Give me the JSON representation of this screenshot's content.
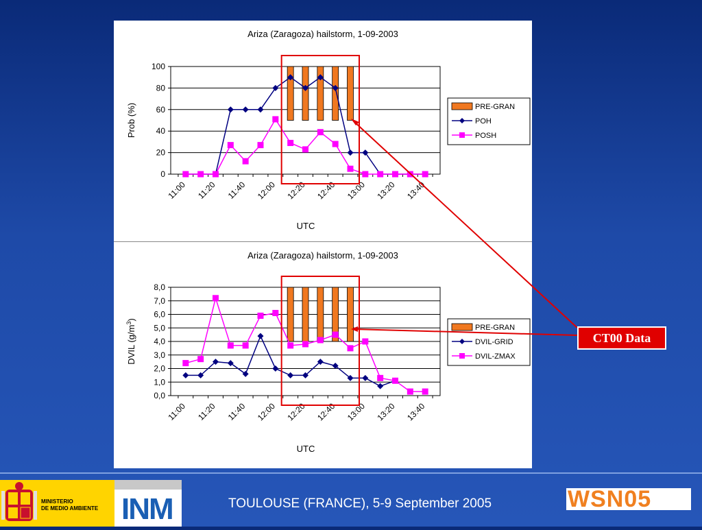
{
  "footer": {
    "conference": "TOULOUSE (FRANCE), 5-9 September 2005",
    "ministerio_line1": "MINISTERIO",
    "ministerio_line2": "DE MEDIO AMBIENTE",
    "inm": "INM",
    "wsn": "WSN05"
  },
  "callout": {
    "label": "CT00 Data",
    "color": "#e00000"
  },
  "colors": {
    "pregran": "#f07820",
    "series_navy": "#000080",
    "series_magenta": "#ff00ff",
    "highlight": "#e00000"
  },
  "chart_data": [
    {
      "type": "line",
      "title": "Ariza (Zaragoza) hailstorm, 1-09-2003",
      "xlabel": "UTC",
      "ylabel": "Prob (%)",
      "ylim": [
        0,
        100
      ],
      "yticks": [
        "0",
        "20",
        "40",
        "60",
        "80",
        "100"
      ],
      "ytick_values": [
        0,
        20,
        40,
        60,
        80,
        100
      ],
      "x": [
        "11:00",
        "11:10",
        "11:20",
        "11:30",
        "11:40",
        "11:50",
        "12:00",
        "12:10",
        "12:20",
        "12:30",
        "12:40",
        "12:50",
        "13:00",
        "13:10",
        "13:20",
        "13:30",
        "13:40"
      ],
      "xtick_labels": [
        "11:00",
        "11:20",
        "11:40",
        "12:00",
        "12:20",
        "12:40",
        "13:00",
        "13:20",
        "13:40"
      ],
      "grid": true,
      "legend_position": "right",
      "bars": {
        "name": "PRE-GRAN",
        "categories": [
          "12:10",
          "12:20",
          "12:30",
          "12:40",
          "12:50"
        ],
        "bottom": 50,
        "top": 100
      },
      "series": [
        {
          "name": "POH",
          "marker": "diamond",
          "values": [
            0,
            0,
            0,
            60,
            60,
            60,
            80,
            90,
            80,
            90,
            80,
            20,
            20,
            0,
            0,
            0,
            0
          ]
        },
        {
          "name": "POSH",
          "marker": "square",
          "values": [
            0,
            0,
            0,
            27,
            12,
            27,
            51,
            29,
            23,
            39,
            28,
            5,
            0,
            0,
            0,
            0,
            0
          ]
        }
      ]
    },
    {
      "type": "line",
      "title": "Ariza (Zaragoza) hailstorm, 1-09-2003",
      "xlabel": "UTC",
      "ylabel": "DVIL (g/m",
      "ylabel_sup": "3",
      "ylabel_close": ")",
      "ylim": [
        0,
        8
      ],
      "yticks": [
        "0,0",
        "1,0",
        "2,0",
        "3,0",
        "4,0",
        "5,0",
        "6,0",
        "7,0",
        "8,0"
      ],
      "ytick_values": [
        0,
        1,
        2,
        3,
        4,
        5,
        6,
        7,
        8
      ],
      "x": [
        "11:00",
        "11:10",
        "11:20",
        "11:30",
        "11:40",
        "11:50",
        "12:00",
        "12:10",
        "12:20",
        "12:30",
        "12:40",
        "12:50",
        "13:00",
        "13:10",
        "13:20",
        "13:30",
        "13:40"
      ],
      "xtick_labels": [
        "11:00",
        "11:20",
        "11:40",
        "12:00",
        "12:20",
        "12:40",
        "13:00",
        "13:20",
        "13:40"
      ],
      "grid": true,
      "legend_position": "right",
      "bars": {
        "name": "PRE-GRAN",
        "categories": [
          "12:10",
          "12:20",
          "12:30",
          "12:40",
          "12:50"
        ],
        "bottom": 4,
        "top": 8
      },
      "series": [
        {
          "name": "DVIL-GRID",
          "marker": "diamond",
          "values": [
            1.5,
            1.5,
            2.5,
            2.4,
            1.6,
            4.4,
            2.0,
            1.5,
            1.5,
            2.5,
            2.2,
            1.3,
            1.3,
            0.7,
            1.1,
            null,
            null
          ]
        },
        {
          "name": "DVIL-ZMAX",
          "marker": "square",
          "values": [
            2.4,
            2.7,
            7.2,
            3.7,
            3.7,
            5.9,
            6.1,
            3.7,
            3.8,
            4.1,
            4.5,
            3.5,
            4.0,
            1.3,
            1.1,
            0.3,
            0.3
          ]
        }
      ]
    }
  ]
}
